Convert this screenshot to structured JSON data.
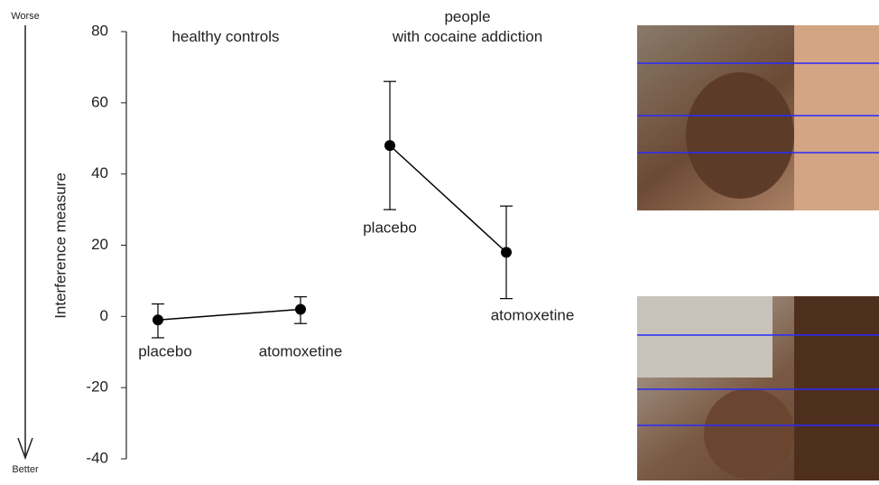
{
  "chart_data": {
    "type": "line",
    "y_label": "Interference measure",
    "annotations": {
      "top": "Worse",
      "bottom": "Better"
    },
    "categories": [
      "placebo",
      "atomoxetine"
    ],
    "ylim": [
      -40,
      80
    ],
    "yticks": [
      -40,
      -20,
      0,
      20,
      40,
      60,
      80
    ],
    "color": "#000000",
    "series": [
      {
        "name": "healthy controls",
        "values": [
          -1,
          2
        ],
        "lower": [
          -6,
          -2
        ],
        "upper": [
          3.5,
          5.5
        ]
      },
      {
        "name": "people\nwith cocaine addiction",
        "values": [
          48,
          18
        ],
        "lower": [
          30,
          5
        ],
        "upper": [
          66,
          31
        ]
      }
    ]
  }
}
